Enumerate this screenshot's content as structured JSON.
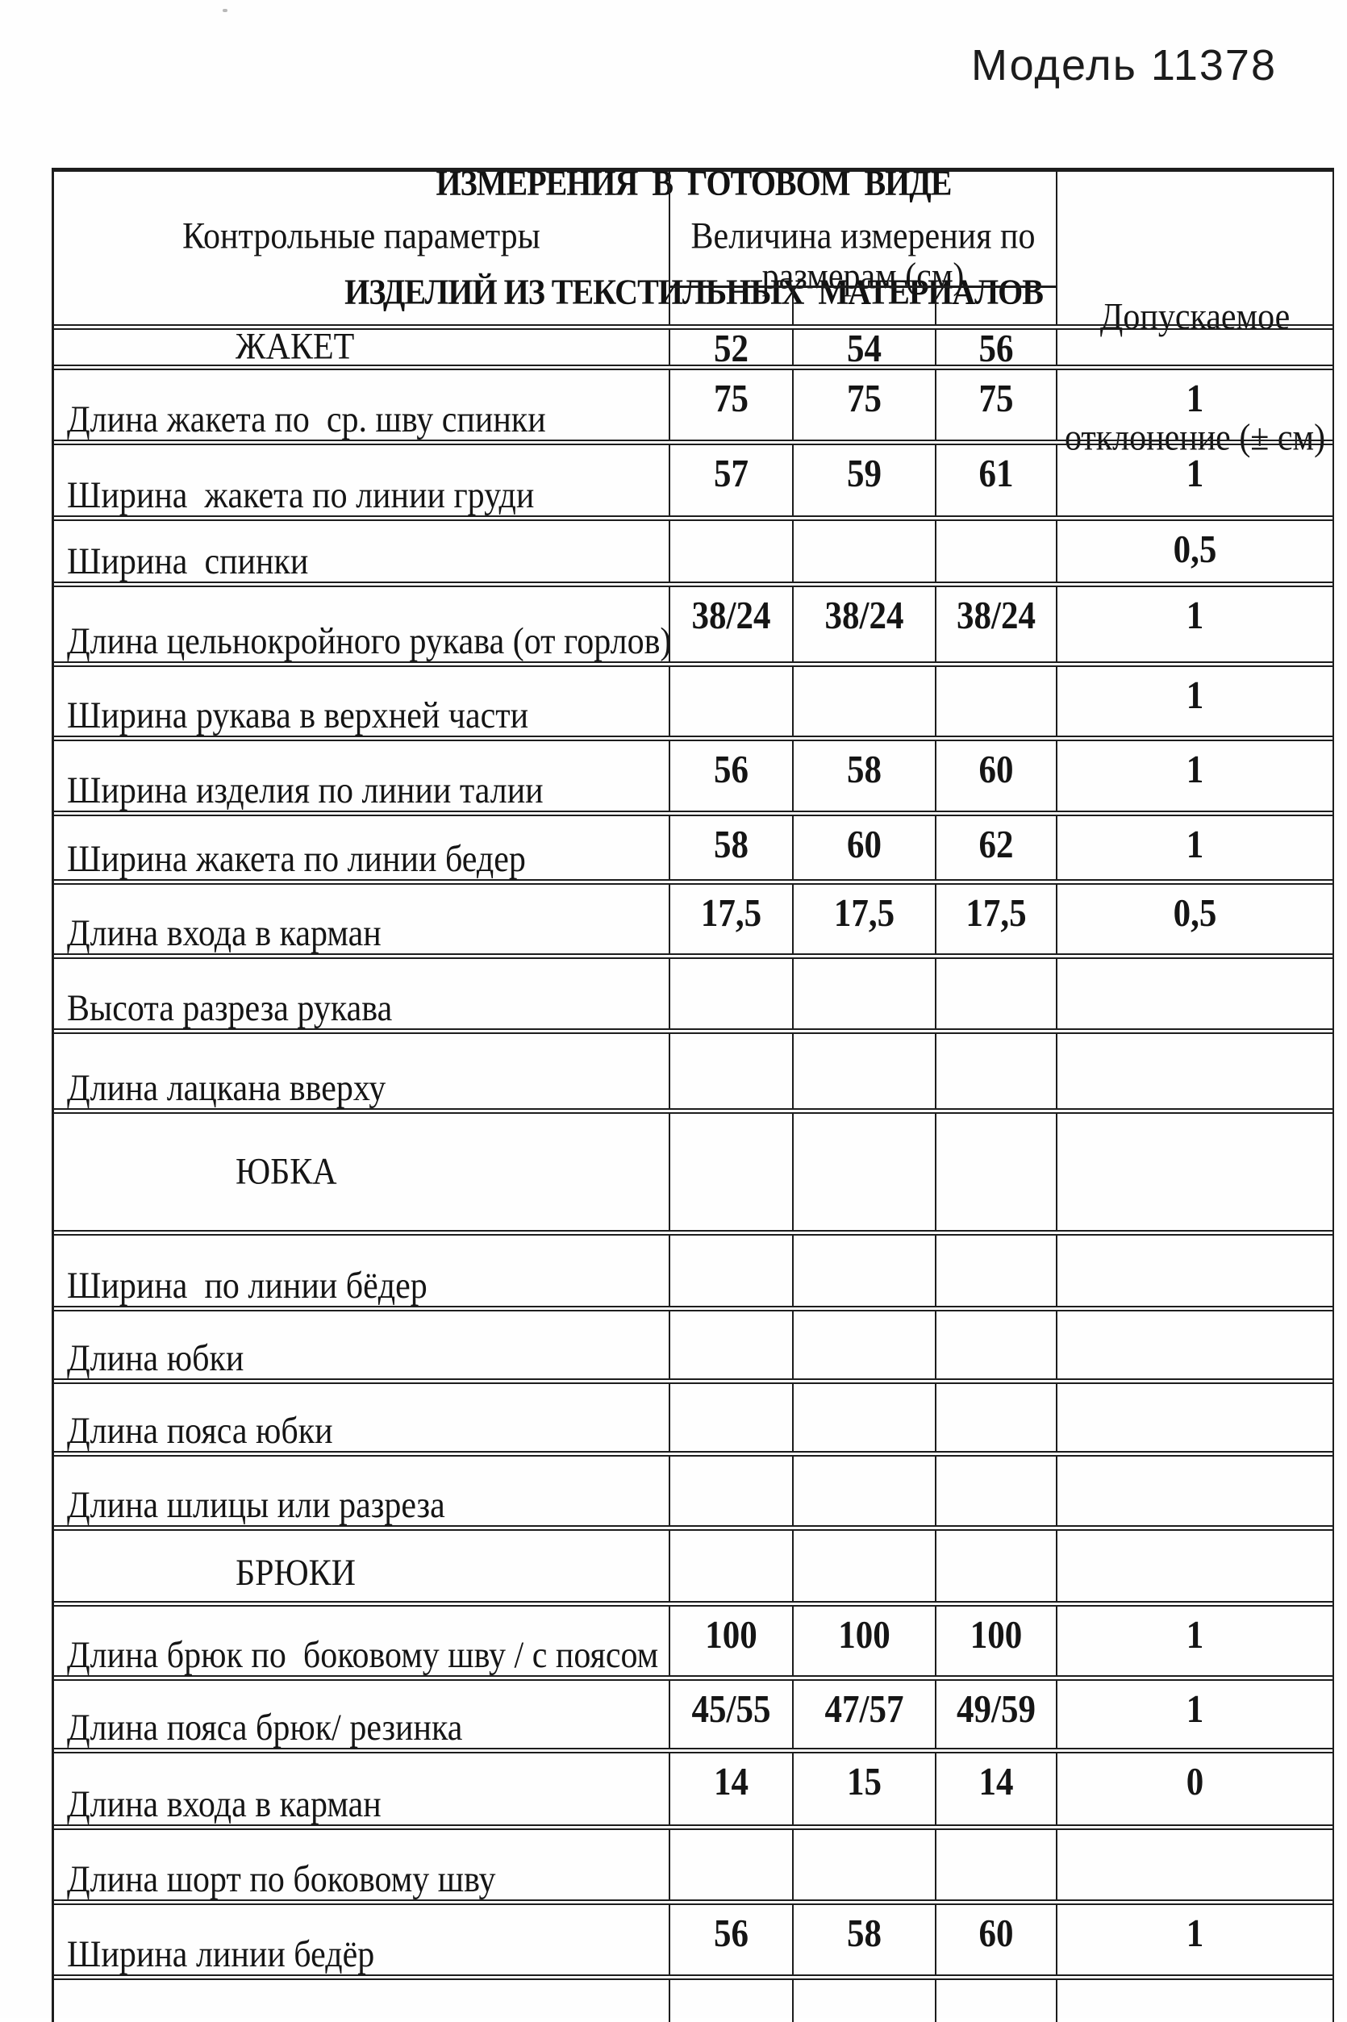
{
  "page": {
    "model_label": "Модель 11378",
    "title_line1": "ИЗМЕРЕНИЯ  В  ГОТОВОМ  ВИДЕ",
    "title_line2": "ИЗДЕЛИЙ ИЗ ТЕКСТИЛЬНЫХ  МАТЕРИАЛОВ"
  },
  "table": {
    "header": {
      "col_params": "Контрольные параметры",
      "col_values_line1": "Величина измерения по",
      "col_values_line2": "размерам (см)",
      "col_tolerance_line1": "Допускаемое",
      "col_tolerance_line2": "отклонение (± см)"
    },
    "rows": [
      {
        "type": "section",
        "label": "ЖАКЕТ",
        "values": [
          "52",
          "54",
          "56"
        ],
        "tolerance": ""
      },
      {
        "type": "data",
        "label": "Длина жакета по  ср. шву спинки",
        "values": [
          "75",
          "75",
          "75"
        ],
        "tolerance": "1"
      },
      {
        "type": "data",
        "label": "Ширина  жакета по линии груди",
        "values": [
          "57",
          "59",
          "61"
        ],
        "tolerance": "1"
      },
      {
        "type": "data",
        "label": "Ширина  спинки",
        "values": [
          "",
          "",
          ""
        ],
        "tolerance": "0,5"
      },
      {
        "type": "data",
        "label": "Длина цельнокройного рукава (от горлов)",
        "values": [
          "38/24",
          "38/24",
          "38/24"
        ],
        "tolerance": "1"
      },
      {
        "type": "data",
        "label": "Ширина рукава в верхней части",
        "values": [
          "",
          "",
          ""
        ],
        "tolerance": "1"
      },
      {
        "type": "data",
        "label": "Ширина изделия по линии талии",
        "values": [
          "56",
          "58",
          "60"
        ],
        "tolerance": "1"
      },
      {
        "type": "data",
        "label": "Ширина жакета по линии бедер",
        "values": [
          "58",
          "60",
          "62"
        ],
        "tolerance": "1"
      },
      {
        "type": "data",
        "label": "Длина входа в карман",
        "values": [
          "17,5",
          "17,5",
          "17,5"
        ],
        "tolerance": "0,5"
      },
      {
        "type": "data",
        "label": "Высота разреза рукава",
        "values": [
          "",
          "",
          ""
        ],
        "tolerance": ""
      },
      {
        "type": "data",
        "label": "Длина лацкана вверху",
        "values": [
          "",
          "",
          ""
        ],
        "tolerance": ""
      },
      {
        "type": "section",
        "label": "ЮБКА",
        "values": [
          "",
          "",
          ""
        ],
        "tolerance": ""
      },
      {
        "type": "data",
        "label": "Ширина  по линии бёдер",
        "values": [
          "",
          "",
          ""
        ],
        "tolerance": ""
      },
      {
        "type": "data",
        "label": "Длина юбки",
        "values": [
          "",
          "",
          ""
        ],
        "tolerance": ""
      },
      {
        "type": "data",
        "label": "Длина пояса юбки",
        "values": [
          "",
          "",
          ""
        ],
        "tolerance": ""
      },
      {
        "type": "data",
        "label": "Длина шлицы или разреза",
        "values": [
          "",
          "",
          ""
        ],
        "tolerance": ""
      },
      {
        "type": "section",
        "label": "БРЮКИ",
        "values": [
          "",
          "",
          ""
        ],
        "tolerance": ""
      },
      {
        "type": "data",
        "label": "Длина брюк по  боковому шву / с поясом",
        "values": [
          "100",
          "100",
          "100"
        ],
        "tolerance": "1"
      },
      {
        "type": "data",
        "label": "Длина пояса брюк/ резинка",
        "values": [
          "45/55",
          "47/57",
          "49/59"
        ],
        "tolerance": "1"
      },
      {
        "type": "data",
        "label": "Длина входа в карман",
        "values": [
          "14",
          "15",
          "14"
        ],
        "tolerance": "0"
      },
      {
        "type": "data",
        "label": "Длина шорт по боковому шву",
        "values": [
          "",
          "",
          ""
        ],
        "tolerance": ""
      },
      {
        "type": "data",
        "label": "Ширина линии бедёр",
        "values": [
          "56",
          "58",
          "60"
        ],
        "tolerance": "1"
      },
      {
        "type": "data",
        "label": "",
        "values": [
          "",
          "",
          ""
        ],
        "tolerance": ""
      }
    ]
  }
}
